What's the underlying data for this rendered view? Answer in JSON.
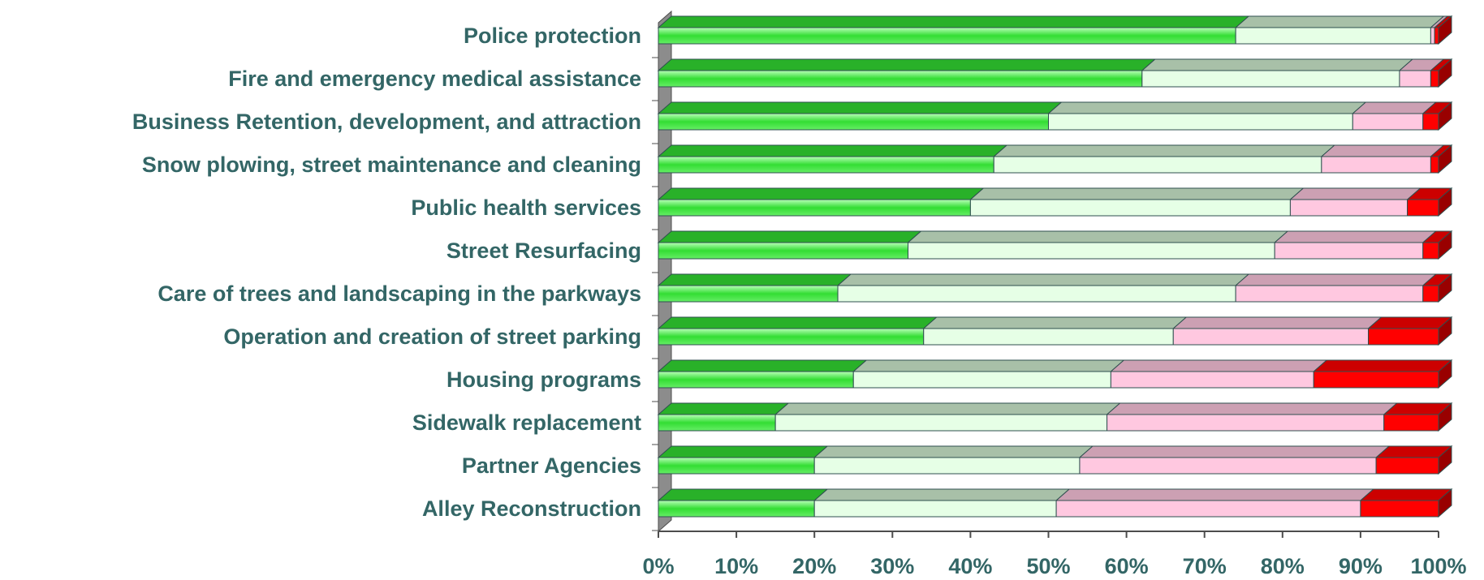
{
  "chart_data": {
    "type": "stacked-bar-3d",
    "categories": [
      "Police protection",
      "Fire and emergency medical assistance",
      "Business Retention, development, and attraction",
      "Snow plowing, street maintenance and cleaning",
      "Public health services",
      "Street Resurfacing",
      "Care of trees and landscaping in the parkways",
      "Operation and creation of street parking",
      "Housing programs",
      "Sidewalk replacement",
      "Partner Agencies",
      "Alley Reconstruction"
    ],
    "series": [
      {
        "color": "#33dd33",
        "values": [
          74,
          62,
          50,
          43,
          40,
          32,
          23,
          34,
          25,
          15,
          20,
          20
        ]
      },
      {
        "color": "#e6ffe6",
        "values": [
          25,
          33,
          39,
          42,
          41,
          47,
          51,
          32,
          33,
          42.5,
          34,
          31
        ]
      },
      {
        "color": "#ffc8e0",
        "values": [
          0.5,
          4,
          9,
          14,
          15,
          19,
          24,
          25,
          26,
          35.5,
          38,
          39
        ]
      },
      {
        "color": "#ff0000",
        "values": [
          0.5,
          1,
          2,
          1,
          4,
          2,
          2,
          9,
          16,
          7,
          8,
          10
        ]
      }
    ],
    "xlim": [
      0,
      100
    ],
    "xticks": [
      {
        "value": 0,
        "label": "0%"
      },
      {
        "value": 10,
        "label": "10%"
      },
      {
        "value": 20,
        "label": "20%"
      },
      {
        "value": 30,
        "label": "30%"
      },
      {
        "value": 40,
        "label": "40%"
      },
      {
        "value": 50,
        "label": "50%"
      },
      {
        "value": 60,
        "label": "60%"
      },
      {
        "value": 70,
        "label": "70%"
      },
      {
        "value": 80,
        "label": "80%"
      },
      {
        "value": 90,
        "label": "90%"
      },
      {
        "value": 100,
        "label": "100%"
      }
    ]
  }
}
